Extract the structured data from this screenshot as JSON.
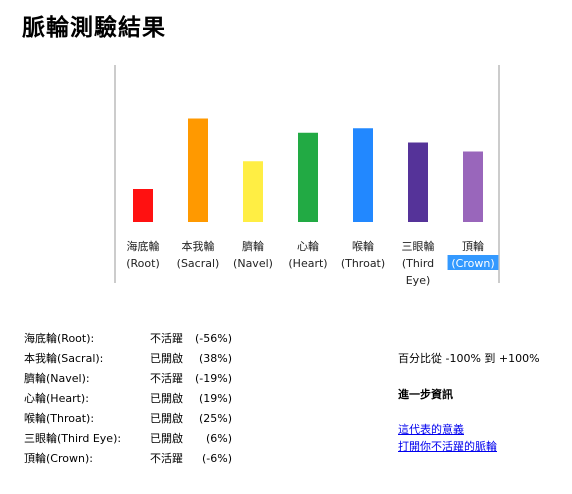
{
  "title": "脈輪測驗結果",
  "chart_data": {
    "type": "bar",
    "categories": [
      [
        "海底輪",
        "(Root)"
      ],
      [
        "本我輪",
        "(Sacral)"
      ],
      [
        "臍輪",
        "(Navel)"
      ],
      [
        "心輪",
        "(Heart)"
      ],
      [
        "喉輪",
        "(Throat)"
      ],
      [
        "三眼輪",
        "(Third",
        "Eye)"
      ],
      [
        "頂輪",
        "(Crown)"
      ]
    ],
    "values": [
      -56,
      38,
      -19,
      19,
      25,
      6,
      -6
    ],
    "colors": [
      "#ff1111",
      "#ff9900",
      "#ffee44",
      "#22aa44",
      "#2288ff",
      "#553399",
      "#9966bb"
    ],
    "ylim": [
      -100,
      100
    ],
    "highlight_index": 6,
    "highlight_color": "#3399ff"
  },
  "results": [
    {
      "label": "海底輪(Root):",
      "status": "不活躍",
      "pct": "(-56%)"
    },
    {
      "label": "本我輪(Sacral):",
      "status": "已開啟",
      "pct": "(38%)"
    },
    {
      "label": "臍輪(Navel):",
      "status": "不活躍",
      "pct": "(-19%)"
    },
    {
      "label": "心輪(Heart):",
      "status": "已開啟",
      "pct": "(19%)"
    },
    {
      "label": "喉輪(Throat):",
      "status": "已開啟",
      "pct": "(25%)"
    },
    {
      "label": "三眼輪(Third Eye):",
      "status": "已開啟",
      "pct": "(6%)"
    },
    {
      "label": "頂輪(Crown):",
      "status": "不活躍",
      "pct": "(-6%)"
    }
  ],
  "range_text": "百分比從 -100% 到 +100%",
  "more_info": "進一步資訊",
  "links": [
    "這代表的意義",
    "打開你不活躍的脈輪"
  ]
}
